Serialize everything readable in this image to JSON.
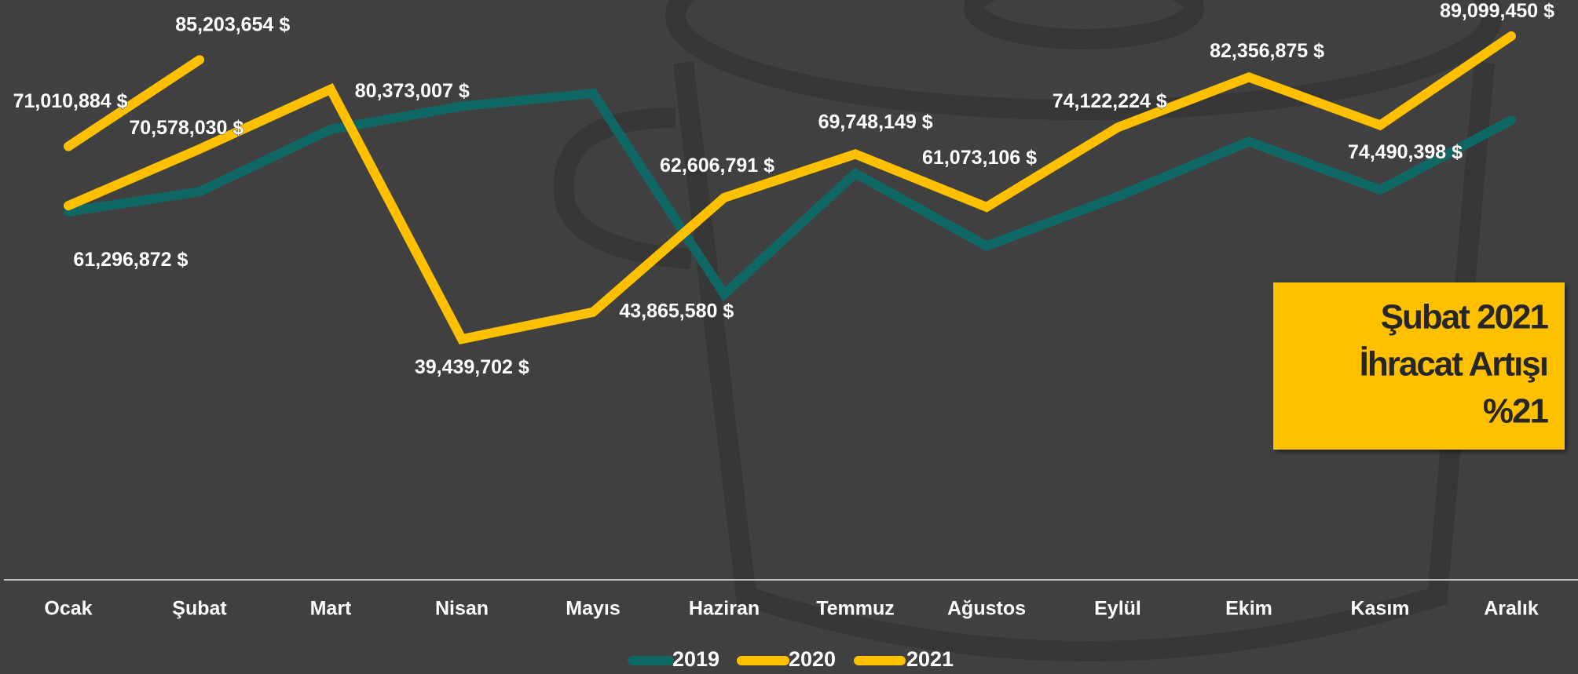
{
  "chart_data": {
    "type": "line",
    "categories": [
      "Ocak",
      "Şubat",
      "Mart",
      "Nisan",
      "Mayıs",
      "Haziran",
      "Temmuz",
      "Ağustos",
      "Eylül",
      "Ekim",
      "Kasım",
      "Aralık"
    ],
    "series": [
      {
        "name": "2019",
        "color": "#0f6764",
        "values": [
          60300000,
          63600000,
          73800000,
          77600000,
          79700000,
          46800000,
          66600000,
          54700000,
          62800000,
          71800000,
          63900000,
          75300000
        ]
      },
      {
        "name": "2020",
        "color": "#ffc000",
        "values": [
          61296872,
          70578030,
          80373007,
          39439702,
          43865580,
          62606791,
          69748149,
          61073106,
          74122224,
          82356875,
          74490398,
          89099450
        ],
        "value_labels": [
          "61,296,872 $",
          "70,578,030 $",
          "80,373,007 $",
          "39,439,702 $",
          "43,865,580 $",
          "62,606,791 $",
          "69,748,149 $",
          "61,073,106 $",
          "74,122,224 $",
          "82,356,875 $",
          "74,490,398 $",
          "89,099,450 $"
        ]
      },
      {
        "name": "2021",
        "color": "#ffc000",
        "values": [
          71010884,
          85203654,
          null,
          null,
          null,
          null,
          null,
          null,
          null,
          null,
          null,
          null
        ],
        "value_labels": [
          "71,010,884 $",
          "85,203,654 $",
          null,
          null,
          null,
          null,
          null,
          null,
          null,
          null,
          null,
          null
        ]
      }
    ],
    "ylim": [
      0,
      95000000
    ],
    "annotation": {
      "lines": [
        "Şubat 2021",
        "İhracat Artışı",
        "%21"
      ],
      "color": "#ffc000"
    }
  }
}
